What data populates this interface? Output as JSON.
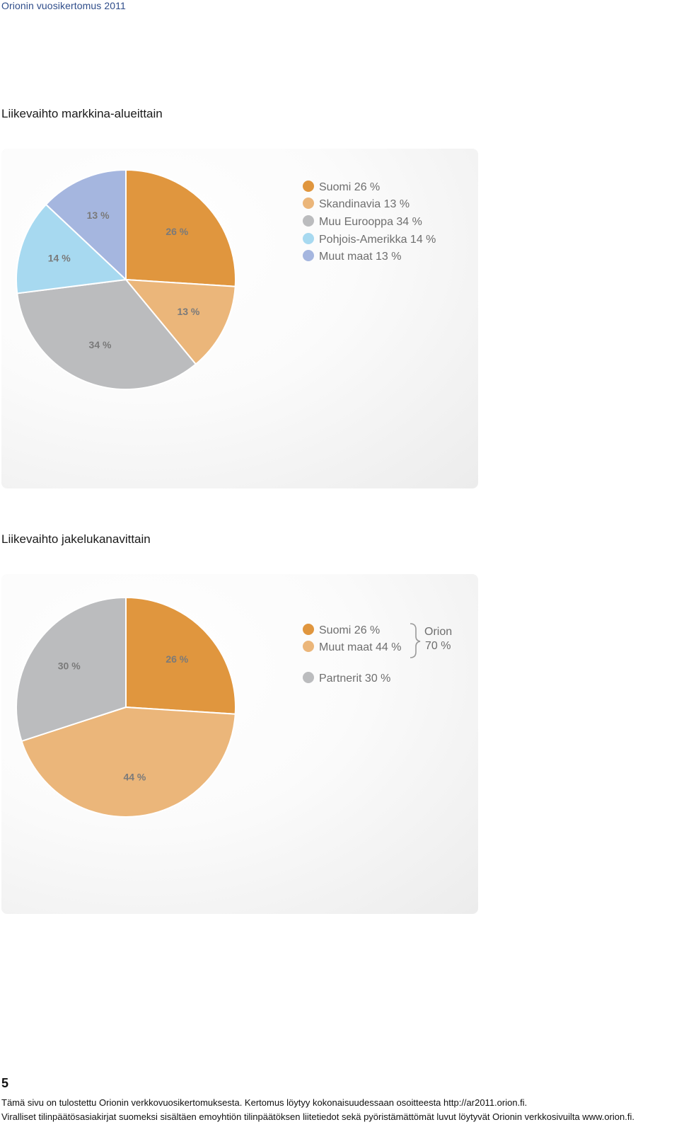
{
  "header": {
    "doc_title": "Orionin vuosikertomus 2011"
  },
  "sections": [
    {
      "title": "Liikevaihto markkina-alueittain"
    },
    {
      "title": "Liikevaihto jakelukanavittain"
    }
  ],
  "chart_data": [
    {
      "type": "pie",
      "title": "Liikevaihto markkina-alueittain",
      "slices": [
        {
          "label": "Suomi",
          "value": 26,
          "slice_label": "26 %",
          "legend": "Suomi 26 %",
          "color": "#e0963e"
        },
        {
          "label": "Skandinavia",
          "value": 13,
          "slice_label": "13 %",
          "legend": "Skandinavia 13 %",
          "color": "#ebb67a"
        },
        {
          "label": "Muu Eurooppa",
          "value": 34,
          "slice_label": "34 %",
          "legend": "Muu Eurooppa 34 %",
          "color": "#bbbcbe"
        },
        {
          "label": "Pohjois-Amerikka",
          "value": 14,
          "slice_label": "14 %",
          "legend": "Pohjois-Amerikka 14 %",
          "color": "#a7d9f0"
        },
        {
          "label": "Muut maat",
          "value": 13,
          "slice_label": "13 %",
          "legend": "Muut maat 13 %",
          "color": "#a5b6df"
        }
      ],
      "legend_position": "top-right"
    },
    {
      "type": "pie",
      "title": "Liikevaihto jakelukanavittain",
      "slices": [
        {
          "label": "Suomi",
          "value": 26,
          "slice_label": "26 %",
          "legend": "Suomi 26 %",
          "color": "#e0963e"
        },
        {
          "label": "Muut maat",
          "value": 44,
          "slice_label": "44 %",
          "legend": "Muut maat 44 %",
          "color": "#ebb67a"
        },
        {
          "label": "Partnerit",
          "value": 30,
          "slice_label": "30 %",
          "legend": "Partnerit 30 %",
          "color": "#bbbcbe"
        }
      ],
      "group_label": {
        "name": "Orion",
        "value": "70 %"
      },
      "legend_position": "top-right"
    }
  ],
  "footer": {
    "page_number": "5",
    "line1": "Tämä sivu on tulostettu Orionin verkkovuosikertomuksesta. Kertomus löytyy kokonaisuudessaan osoitteesta http://ar2011.orion.fi.",
    "line2": "Viralliset tilinpäätösasiakirjat suomeksi sisältäen emoyhtiön tilinpäätöksen liitetiedot sekä pyöristämättömät luvut löytyvät Orionin verkkosivuilta www.orion.fi."
  }
}
